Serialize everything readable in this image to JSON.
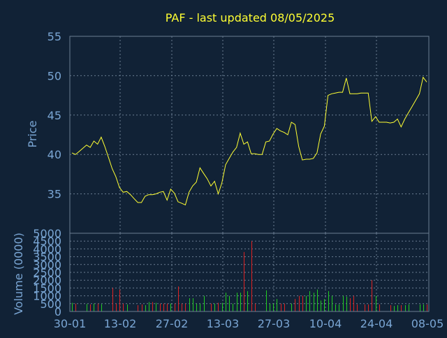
{
  "chart_data": [
    {
      "type": "line",
      "title": "PAF - last updated 08/05/2025",
      "ylabel": "Price",
      "ylim": [
        30,
        55
      ],
      "yticks": [
        35,
        40,
        45,
        50,
        55
      ],
      "x_tick_labels": [
        "30-01",
        "13-02",
        "27-02",
        "13-03",
        "27-03",
        "10-04",
        "24-04",
        "08-05"
      ],
      "grid": true,
      "line_color": "#ffff33",
      "series": [
        {
          "values": [
            40.2,
            40.0,
            40.4,
            40.8,
            41.2,
            40.9,
            41.7,
            41.3,
            42.2,
            41.0,
            39.6,
            38.2,
            37.2,
            35.8,
            35.2,
            35.3,
            34.9,
            34.4,
            33.9,
            33.9,
            34.7,
            34.9,
            34.9,
            35.0,
            35.2,
            35.3,
            34.2,
            35.6,
            35.1,
            34.0,
            33.8,
            33.6,
            35.2,
            36.0,
            36.5,
            38.3,
            37.6,
            36.9,
            36.0,
            36.6,
            35.0,
            36.4,
            38.7,
            39.5,
            40.3,
            40.9,
            42.7,
            41.3,
            41.6,
            40.1,
            40.1,
            40.0,
            40.0,
            41.6,
            41.7,
            42.6,
            43.3,
            43.0,
            42.8,
            42.5,
            44.1,
            43.8,
            41.0,
            39.3,
            39.4,
            39.4,
            39.5,
            40.2,
            42.6,
            43.6,
            47.5,
            47.7,
            47.8,
            47.9,
            47.9,
            49.7,
            47.7,
            47.7,
            47.7,
            47.8,
            47.8,
            47.8,
            44.2,
            44.8,
            44.1,
            44.1,
            44.1,
            44.0,
            44.1,
            44.5,
            43.5,
            44.5,
            45.3,
            46.1,
            46.9,
            47.7,
            49.8,
            49.2
          ]
        }
      ]
    },
    {
      "type": "bar",
      "ylabel": "Volume (0000)",
      "ylim": [
        0,
        5000
      ],
      "yticks": [
        0,
        500,
        1000,
        1500,
        2000,
        2500,
        3000,
        3500,
        4000,
        4500,
        5000
      ],
      "x_tick_labels": [
        "30-01",
        "13-02",
        "27-02",
        "13-03",
        "27-03",
        "10-04",
        "24-04",
        "08-05"
      ],
      "grid": true,
      "colors": {
        "up": "#22cc22",
        "down": "#dd2222"
      },
      "series": [
        {
          "values": [
            550,
            500,
            0,
            0,
            480,
            450,
            500,
            500,
            470,
            0,
            0,
            1500,
            500,
            1400,
            500,
            450,
            0,
            0,
            400,
            450,
            400,
            600,
            600,
            550,
            500,
            500,
            500,
            500,
            500,
            1600,
            500,
            500,
            850,
            850,
            500,
            500,
            1000,
            0,
            500,
            500,
            550,
            550,
            1200,
            1000,
            500,
            1200,
            1200,
            3800,
            1300,
            4500,
            500,
            0,
            0,
            1350,
            500,
            500,
            800,
            500,
            500,
            0,
            500,
            800,
            1000,
            1000,
            1000,
            1300,
            1200,
            1400,
            700,
            800,
            1300,
            1000,
            450,
            450,
            1000,
            950,
            850,
            1000,
            450,
            0,
            450,
            450,
            2000,
            1000,
            450,
            0,
            0,
            400,
            350,
            400,
            400,
            400,
            450,
            0,
            0,
            450,
            450,
            450
          ],
          "directions": [
            "u",
            "d",
            "d",
            "d",
            "u",
            "d",
            "u",
            "d",
            "u",
            "d",
            "d",
            "d",
            "d",
            "d",
            "d",
            "u",
            "d",
            "d",
            "d",
            "d",
            "u",
            "u",
            "d",
            "u",
            "d",
            "d",
            "d",
            "u",
            "d",
            "d",
            "d",
            "d",
            "u",
            "u",
            "u",
            "u",
            "u",
            "d",
            "d",
            "u",
            "d",
            "u",
            "u",
            "u",
            "u",
            "u",
            "u",
            "d",
            "u",
            "d",
            "d",
            "d",
            "d",
            "u",
            "u",
            "u",
            "u",
            "d",
            "d",
            "d",
            "u",
            "d",
            "d",
            "d",
            "u",
            "u",
            "u",
            "u",
            "u",
            "u",
            "u",
            "u",
            "u",
            "u",
            "u",
            "u",
            "d",
            "d",
            "d",
            "u",
            "d",
            "d",
            "d",
            "u",
            "d",
            "d",
            "d",
            "d",
            "u",
            "u",
            "d",
            "u",
            "u",
            "u",
            "u",
            "u",
            "u",
            "d"
          ]
        }
      ]
    }
  ]
}
